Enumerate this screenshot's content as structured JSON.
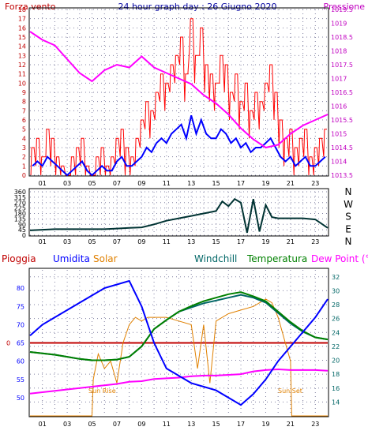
{
  "colors": {
    "wind": "#FF0000",
    "wind_avg": "#0000FF",
    "pressure": "#FF00FF",
    "direction": "#003333",
    "rain": "#C00000",
    "humidity": "#0000FF",
    "solar": "#E08000",
    "windchill": "#006666",
    "temperature": "#008000",
    "dewpoint": "#FF00FF",
    "grid": "#8080A0",
    "axis_left": "#C00000",
    "axis_right": "#C000C0",
    "header": "#0000A0",
    "frame": "#000000"
  },
  "header": {
    "left": "Forza vento",
    "center": "24 hour graph day : 26 Giugno 2020",
    "right": "Pressione"
  },
  "legend": {
    "rain": "Pioggia",
    "humidity": "Umidita",
    "solar": "Solar",
    "windchill": "Windchill",
    "temperature": "Temperatura",
    "dewpoint": "Dew Point (°C)"
  },
  "annotations": {
    "sunrise": "Sun Rise",
    "sunset": "Sun Set"
  },
  "x_ticks": [
    "01",
    "03",
    "05",
    "07",
    "09",
    "11",
    "13",
    "15",
    "17",
    "19",
    "21",
    "23"
  ],
  "chart_data": [
    {
      "type": "line",
      "title": "24 hour graph day : 26 Giugno 2020",
      "xlabel": "",
      "ylabel": "Forza vento",
      "y2label": "Pressione",
      "xlim": [
        0,
        24
      ],
      "ylim": [
        0,
        18
      ],
      "y2lim": [
        1013.5,
        1019.5
      ],
      "yticks": [
        0,
        1,
        2,
        3,
        4,
        5,
        6,
        7,
        8,
        9,
        10,
        11,
        12,
        13,
        14,
        15,
        16,
        17,
        18
      ],
      "y2ticks": [
        "1013.5",
        "1014",
        "1014.5",
        "1015",
        "1015.5",
        "1016",
        "1016.5",
        "1017",
        "1017.5",
        "1018",
        "1018.5",
        "1019",
        "1019.5"
      ],
      "series": [
        {
          "name": "Forza vento",
          "x": [
            0.2,
            0.6,
            1.0,
            1.4,
            1.8,
            2.2,
            2.6,
            3.0,
            3.4,
            3.8,
            4.2,
            4.6,
            5.0,
            5.4,
            5.8,
            6.2,
            6.6,
            7.0,
            7.4,
            7.8,
            8.2,
            8.6,
            9.0,
            9.4,
            9.8,
            10.2,
            10.6,
            11.0,
            11.4,
            11.8,
            12.2,
            12.6,
            13.0,
            13.4,
            13.8,
            14.2,
            14.6,
            15.0,
            15.4,
            15.8,
            16.2,
            16.6,
            17.0,
            17.4,
            17.8,
            18.2,
            18.6,
            19.0,
            19.4,
            19.8,
            20.2,
            20.6,
            21.0,
            21.4,
            21.8,
            22.2,
            22.6,
            23.0,
            23.4,
            23.8
          ],
          "values": [
            3,
            4,
            2,
            5,
            4,
            2,
            1,
            0,
            2,
            3,
            4,
            1,
            0,
            2,
            3,
            1,
            2,
            4,
            5,
            3,
            2,
            4,
            6,
            8,
            7,
            9,
            11,
            10,
            12,
            13,
            15,
            11,
            17,
            13,
            16,
            12,
            11,
            10,
            13,
            12,
            9,
            11,
            8,
            10,
            7,
            9,
            8,
            10,
            12,
            9,
            6,
            4,
            5,
            3,
            4,
            5,
            2,
            3,
            4,
            5
          ]
        },
        {
          "name": "wind average",
          "x": [
            0.2,
            0.6,
            1.0,
            1.4,
            1.8,
            2.2,
            2.6,
            3.0,
            3.4,
            3.8,
            4.2,
            4.6,
            5.0,
            5.4,
            5.8,
            6.2,
            6.6,
            7.0,
            7.4,
            7.8,
            8.2,
            8.6,
            9.0,
            9.4,
            9.8,
            10.2,
            10.6,
            11.0,
            11.4,
            11.8,
            12.2,
            12.6,
            13.0,
            13.4,
            13.8,
            14.2,
            14.6,
            15.0,
            15.4,
            15.8,
            16.2,
            16.6,
            17.0,
            17.4,
            17.8,
            18.2,
            18.6,
            19.0,
            19.4,
            19.8,
            20.2,
            20.6,
            21.0,
            21.4,
            21.8,
            22.2,
            22.6,
            23.0,
            23.4,
            23.8
          ],
          "values": [
            1,
            1.5,
            1,
            2,
            1.5,
            1,
            0.5,
            0,
            0.5,
            1,
            1.5,
            0.5,
            0,
            0.5,
            1,
            0.5,
            0.5,
            1.5,
            2,
            1,
            1,
            1.5,
            2,
            3,
            2.5,
            3.5,
            4,
            3.5,
            4.5,
            5,
            5.5,
            4,
            6.5,
            4.5,
            6,
            4.5,
            4,
            4,
            5,
            4.5,
            3.5,
            4,
            3,
            3.5,
            2.5,
            3,
            3,
            3.5,
            4,
            3,
            2,
            1.5,
            2,
            1,
            1.5,
            2,
            1,
            1,
            1.5,
            2
          ]
        },
        {
          "name": "Pressione",
          "axis": "right",
          "x": [
            0,
            1,
            2,
            3,
            4,
            5,
            6,
            7,
            8,
            9,
            10,
            11,
            12,
            13,
            14,
            15,
            16,
            17,
            18,
            19,
            20,
            21,
            22,
            23,
            24
          ],
          "values": [
            1018.7,
            1018.4,
            1018.2,
            1017.7,
            1017.2,
            1016.9,
            1017.3,
            1017.5,
            1017.4,
            1017.8,
            1017.4,
            1017.2,
            1017.0,
            1016.8,
            1016.4,
            1016.1,
            1015.7,
            1015.2,
            1014.8,
            1014.5,
            1014.6,
            1015.0,
            1015.3,
            1015.5,
            1015.7
          ]
        }
      ]
    },
    {
      "type": "line",
      "title": "",
      "ylabel": "",
      "xlim": [
        0,
        24
      ],
      "ylim": [
        0,
        360
      ],
      "yticks": [
        0,
        45,
        90,
        135,
        180,
        225,
        270,
        315,
        360
      ],
      "compass": [
        "N",
        "W",
        "S",
        "E",
        "N"
      ],
      "series": [
        {
          "name": "wind direction",
          "x": [
            0,
            1,
            2,
            3,
            4,
            5,
            6,
            7,
            8,
            9,
            10,
            11,
            12,
            13,
            14,
            15,
            15.5,
            16,
            16.5,
            17,
            17.5,
            18,
            18.5,
            19,
            19.5,
            20,
            21,
            22,
            23,
            24
          ],
          "values": [
            40,
            45,
            50,
            50,
            50,
            50,
            50,
            55,
            60,
            65,
            90,
            120,
            140,
            160,
            180,
            200,
            280,
            240,
            300,
            270,
            20,
            300,
            30,
            250,
            150,
            140,
            140,
            140,
            130,
            60
          ]
        }
      ]
    },
    {
      "type": "line",
      "title": "",
      "xlim": [
        0,
        24
      ],
      "ylim": [
        45,
        85
      ],
      "y2lim": [
        12,
        33
      ],
      "yticks": [
        50,
        55,
        60,
        65,
        70,
        75,
        80
      ],
      "y2ticks": [
        14,
        16,
        18,
        20,
        22,
        24,
        26,
        28,
        30,
        32
      ],
      "rain_value": 0,
      "series": [
        {
          "name": "Umidita",
          "x": [
            0,
            1,
            2,
            3,
            4,
            5,
            6,
            7,
            8,
            9,
            10,
            11,
            12,
            13,
            14,
            15,
            16,
            17,
            18,
            19,
            20,
            21,
            22,
            23,
            24
          ],
          "values": [
            67,
            70,
            72,
            74,
            76,
            78,
            80,
            81,
            82,
            75,
            65,
            58,
            56,
            54,
            53,
            52,
            50,
            48,
            51,
            55,
            60,
            64,
            68,
            72,
            77
          ]
        },
        {
          "name": "Temperatura",
          "axis": "right",
          "x": [
            0,
            1,
            2,
            3,
            4,
            5,
            6,
            7,
            8,
            9,
            10,
            11,
            12,
            13,
            14,
            15,
            16,
            17,
            18,
            19,
            20,
            21,
            22,
            23,
            24
          ],
          "values": [
            21.2,
            21.0,
            20.8,
            20.5,
            20.2,
            20.0,
            20.0,
            20.1,
            20.5,
            22.0,
            24.5,
            25.8,
            27.0,
            27.8,
            28.5,
            29.0,
            29.5,
            29.8,
            29.2,
            28.5,
            27.0,
            25.5,
            24.2,
            23.3,
            23.0
          ]
        },
        {
          "name": "Windchill",
          "axis": "right",
          "x": [
            0,
            1,
            2,
            3,
            4,
            5,
            6,
            7,
            8,
            9,
            10,
            11,
            12,
            13,
            14,
            15,
            16,
            17,
            18,
            19,
            20,
            21,
            22,
            23,
            24
          ],
          "values": [
            21.2,
            21.0,
            20.8,
            20.5,
            20.2,
            20.0,
            20.0,
            20.1,
            20.5,
            22.0,
            24.5,
            25.8,
            27.0,
            27.6,
            28.2,
            28.6,
            29.0,
            29.4,
            29.0,
            28.3,
            26.8,
            25.3,
            24.1,
            23.3,
            23.0
          ]
        },
        {
          "name": "Dew Point (°C)",
          "axis": "right",
          "x": [
            0,
            1,
            2,
            3,
            4,
            5,
            6,
            7,
            8,
            9,
            10,
            11,
            12,
            13,
            14,
            15,
            16,
            17,
            18,
            19,
            20,
            21,
            22,
            23,
            24
          ],
          "values": [
            15.2,
            15.4,
            15.6,
            15.8,
            16.0,
            16.2,
            16.4,
            16.6,
            16.9,
            17.0,
            17.3,
            17.4,
            17.5,
            17.7,
            17.8,
            17.8,
            17.9,
            18.0,
            18.4,
            18.6,
            18.7,
            18.6,
            18.6,
            18.6,
            18.5
          ]
        },
        {
          "name": "Solar",
          "x": [
            0,
            5.0,
            5.1,
            5.5,
            6.0,
            6.5,
            7.0,
            7.5,
            8.0,
            8.5,
            9.0,
            9.5,
            10,
            11,
            12,
            13,
            13.5,
            14,
            14.5,
            15,
            16,
            17,
            18,
            19,
            19.5,
            20,
            20.5,
            21.0,
            21.1,
            24
          ],
          "values": [
            45,
            45,
            55,
            62,
            58,
            60,
            54,
            65,
            70,
            72,
            71,
            72,
            72,
            72,
            71,
            70,
            58,
            70,
            54,
            71,
            73,
            74,
            75,
            77,
            76,
            72,
            66,
            60,
            45,
            45
          ]
        }
      ]
    }
  ]
}
